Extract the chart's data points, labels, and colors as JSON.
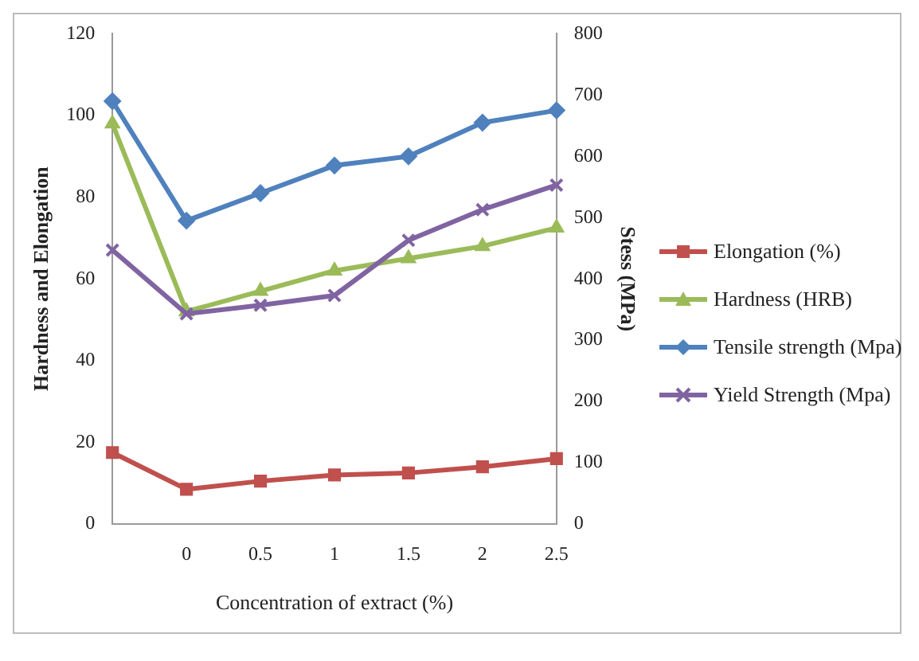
{
  "chart_data": {
    "type": "line",
    "xlabel": "Concentration of extract (%)",
    "ylabel": "Hardness and Elongation",
    "y2label": "Stess (MPa)",
    "categories": [
      null,
      "0",
      "0.5",
      "1",
      "1.5",
      "2",
      "2.5"
    ],
    "series": [
      {
        "name": "Elongation (%)",
        "color": "#c0504d",
        "marker": "square",
        "values": [
          17.5,
          8.5,
          10.5,
          12,
          12.5,
          14,
          16
        ]
      },
      {
        "name": "Hardness (HRB)",
        "color": "#9bbb59",
        "marker": "triangle",
        "values": [
          98,
          52,
          57,
          62,
          65,
          68,
          72.5
        ]
      },
      {
        "name": "Tensile strength (Mpa)",
        "color": "#4f81bd",
        "marker": "diamond",
        "axis": "y2",
        "values": [
          690,
          495,
          540,
          585,
          600,
          655,
          675
        ]
      },
      {
        "name": "Yield Strength (Mpa)",
        "color": "#8064a2",
        "marker": "cross",
        "axis": "y2",
        "values": [
          447,
          343,
          357,
          373,
          463,
          513,
          553
        ]
      }
    ],
    "ylim": [
      0,
      120
    ],
    "yticks": [
      0,
      20,
      40,
      60,
      80,
      100,
      120
    ],
    "y2lim": [
      0,
      800
    ],
    "y2ticks": [
      0,
      100,
      200,
      300,
      400,
      500,
      600,
      700,
      800
    ],
    "grid": false,
    "legend": "right"
  }
}
